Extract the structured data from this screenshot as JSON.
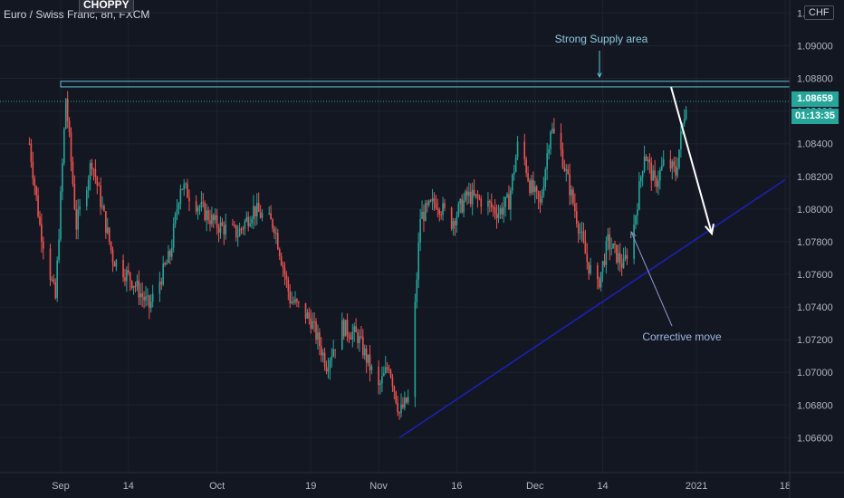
{
  "header": {
    "symbol_label": "Euro / Swiss Franc, 8h, FXCM",
    "badge": "CHOPPY",
    "currency": "CHF"
  },
  "price_scale": {
    "current_price": "1.08659",
    "countdown": "01:13:35"
  },
  "annotations": {
    "supply_label": "Strong Supply area",
    "corrective_label": "Corrective move"
  },
  "colors": {
    "background": "#131722",
    "bull": "#26a69a",
    "bear": "#ef5350",
    "trendline": "#1f1fb4",
    "supply_zone": "#5ec8d6",
    "text": "#b2b5be"
  },
  "chart_data": {
    "type": "candlestick",
    "title": "Euro / Swiss Franc, 8h, FXCM",
    "ylim": [
      1.0648,
      1.0923
    ],
    "y_ticks": [
      "1.09200",
      "1.09000",
      "1.08800",
      "1.08600",
      "1.08400",
      "1.08200",
      "1.08000",
      "1.07800",
      "1.07600",
      "1.07400",
      "1.07200",
      "1.07000",
      "1.06800",
      "1.06600"
    ],
    "x_ticks": [
      "Sep",
      "14",
      "Oct",
      "19",
      "Nov",
      "16",
      "Dec",
      "14",
      "2021",
      "18"
    ],
    "last_price": 1.08659,
    "supply_zone": [
      1.08748,
      1.08782
    ],
    "trendline": {
      "from": [
        "Nov 5",
        1.066
      ],
      "to": [
        "Jan 18",
        1.0818
      ]
    },
    "swing_points": [
      {
        "date": "Aug 26",
        "price": 1.084
      },
      {
        "date": "Aug 28",
        "price": 1.079
      },
      {
        "date": "Aug 31",
        "price": 1.0745
      },
      {
        "date": "Sep 2",
        "price": 1.0868
      },
      {
        "date": "Sep 4",
        "price": 1.079
      },
      {
        "date": "Sep 7",
        "price": 1.083
      },
      {
        "date": "Sep 11",
        "price": 1.077
      },
      {
        "date": "Sep 15",
        "price": 1.0755
      },
      {
        "date": "Sep 18",
        "price": 1.074
      },
      {
        "date": "Sep 22",
        "price": 1.0772
      },
      {
        "date": "Sep 24",
        "price": 1.0815
      },
      {
        "date": "Sep 28",
        "price": 1.08
      },
      {
        "date": "Oct 1",
        "price": 1.079
      },
      {
        "date": "Oct 5",
        "price": 1.0785
      },
      {
        "date": "Oct 8",
        "price": 1.08
      },
      {
        "date": "Oct 12",
        "price": 1.079
      },
      {
        "date": "Oct 15",
        "price": 1.0745
      },
      {
        "date": "Oct 19",
        "price": 1.0732
      },
      {
        "date": "Oct 22",
        "price": 1.0705
      },
      {
        "date": "Oct 25",
        "price": 1.0728
      },
      {
        "date": "Oct 28",
        "price": 1.0722
      },
      {
        "date": "Nov 1",
        "price": 1.069
      },
      {
        "date": "Nov 3",
        "price": 1.0705
      },
      {
        "date": "Nov 5",
        "price": 1.0675
      },
      {
        "date": "Nov 7",
        "price": 1.0685
      },
      {
        "date": "Nov 9",
        "price": 1.0795
      },
      {
        "date": "Nov 12",
        "price": 1.0805
      },
      {
        "date": "Nov 15",
        "price": 1.0792
      },
      {
        "date": "Nov 18",
        "price": 1.0808
      },
      {
        "date": "Nov 21",
        "price": 1.0805
      },
      {
        "date": "Nov 24",
        "price": 1.0798
      },
      {
        "date": "Nov 26",
        "price": 1.0805
      },
      {
        "date": "Nov 28",
        "price": 1.0845
      },
      {
        "date": "Nov 30",
        "price": 1.0815
      },
      {
        "date": "Dec 2",
        "price": 1.0802
      },
      {
        "date": "Dec 4",
        "price": 1.085
      },
      {
        "date": "Dec 6",
        "price": 1.0835
      },
      {
        "date": "Dec 9",
        "price": 1.0795
      },
      {
        "date": "Dec 11",
        "price": 1.0768
      },
      {
        "date": "Dec 13",
        "price": 1.0752
      },
      {
        "date": "Dec 15",
        "price": 1.078
      },
      {
        "date": "Dec 18",
        "price": 1.0765
      },
      {
        "date": "Dec 20",
        "price": 1.079
      },
      {
        "date": "Dec 22",
        "price": 1.0835
      },
      {
        "date": "Dec 24",
        "price": 1.0815
      },
      {
        "date": "Dec 26",
        "price": 1.083
      },
      {
        "date": "Dec 28",
        "price": 1.0822
      },
      {
        "date": "Dec 30",
        "price": 1.0866
      }
    ]
  }
}
